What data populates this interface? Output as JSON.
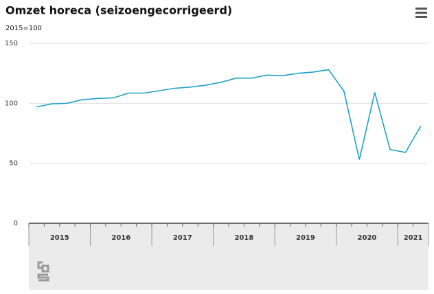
{
  "chart_data": {
    "type": "line",
    "title": "Omzet horeca (seizoengecorrigeerd)",
    "subtitle": "2015=100",
    "categories": [
      "2015",
      null,
      null,
      null,
      "2016",
      null,
      null,
      null,
      "2017",
      null,
      null,
      null,
      "2018",
      null,
      null,
      null,
      "2019",
      null,
      null,
      null,
      "2020",
      null,
      null,
      null,
      "2021",
      null
    ],
    "series": [
      {
        "name": "Omzet horeca",
        "color": "#1ba1c6",
        "values": [
          97,
          99.5,
          100,
          103,
          104,
          104.5,
          108.5,
          108.5,
          110.5,
          112.5,
          113.5,
          115,
          117.5,
          121,
          121,
          123.5,
          123,
          125,
          126,
          128,
          110,
          53,
          109,
          61.5,
          59,
          81
        ]
      }
    ],
    "ylim": [
      0,
      150
    ],
    "yticks": [
      0,
      50,
      100,
      150
    ],
    "grid": true
  }
}
